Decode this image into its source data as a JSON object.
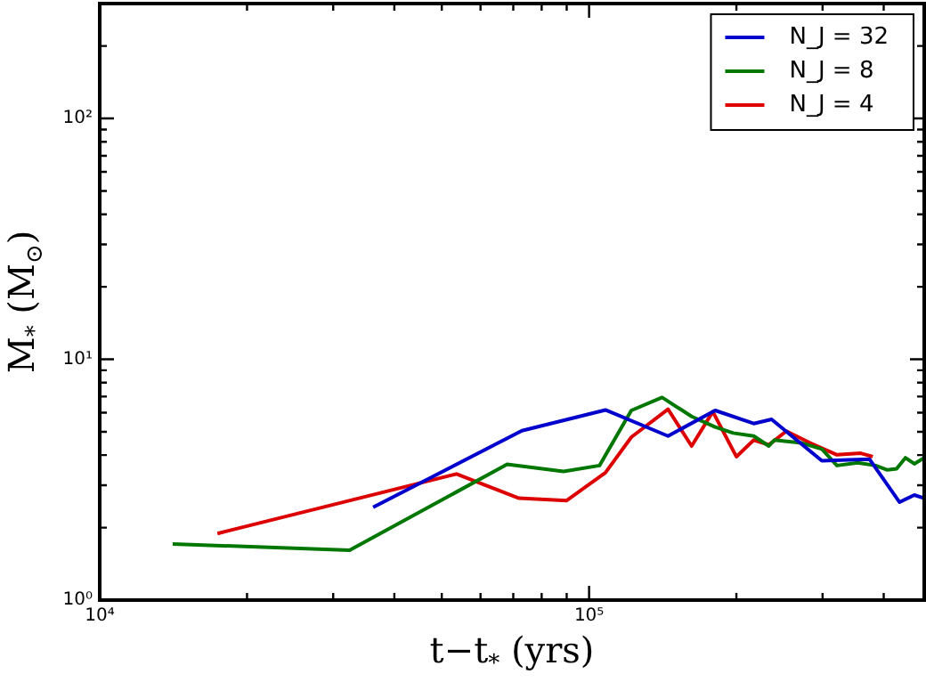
{
  "chart_data": {
    "type": "line",
    "xlabel": "t−t$_{*}$ (yrs)",
    "ylabel": "M$_{*}$ (M$_{⊙}$)",
    "log": "xy",
    "grid": false,
    "legend": "top right",
    "marker": "none",
    "line_style": "solid",
    "xlim": [
      10000,
      484000
    ],
    "ylim": [
      1,
      300
    ],
    "xticks": [
      {
        "value": 10000,
        "label": "10⁴"
      },
      {
        "value": 20000,
        "label": null
      },
      {
        "value": 30000,
        "label": null
      },
      {
        "value": 40000,
        "label": null
      },
      {
        "value": 50000,
        "label": null
      },
      {
        "value": 60000,
        "label": null
      },
      {
        "value": 70000,
        "label": null
      },
      {
        "value": 80000,
        "label": null
      },
      {
        "value": 90000,
        "label": null
      },
      {
        "value": 100000,
        "label": "10⁵"
      },
      {
        "value": 200000,
        "label": null
      },
      {
        "value": 300000,
        "label": null
      },
      {
        "value": 400000,
        "label": null
      }
    ],
    "yticks": [
      {
        "value": 1,
        "label": "10⁰"
      },
      {
        "value": 2,
        "label": null
      },
      {
        "value": 3,
        "label": null
      },
      {
        "value": 4,
        "label": null
      },
      {
        "value": 5,
        "label": null
      },
      {
        "value": 6,
        "label": null
      },
      {
        "value": 7,
        "label": null
      },
      {
        "value": 8,
        "label": null
      },
      {
        "value": 9,
        "label": null
      },
      {
        "value": 10,
        "label": "10¹"
      },
      {
        "value": 20,
        "label": null
      },
      {
        "value": 30,
        "label": null
      },
      {
        "value": 40,
        "label": null
      },
      {
        "value": 50,
        "label": null
      },
      {
        "value": 60,
        "label": null
      },
      {
        "value": 70,
        "label": null
      },
      {
        "value": 80,
        "label": null
      },
      {
        "value": 90,
        "label": null
      },
      {
        "value": 100,
        "label": "10²"
      },
      {
        "value": 200,
        "label": null
      },
      {
        "value": 300,
        "label": null
      }
    ],
    "series": [
      {
        "name": "N_J = 32",
        "color": "#0000cc",
        "x": [
          36200,
          72900,
          108000,
          145000,
          181000,
          217000,
          236000,
          299000,
          374000,
          431000,
          462000,
          484000
        ],
        "values": [
          2.43,
          5.05,
          6.16,
          4.8,
          6.13,
          5.41,
          5.63,
          3.79,
          3.85,
          2.55,
          2.73,
          2.65
        ]
      },
      {
        "name": "N_J = 8",
        "color": "#007700",
        "x": [
          14100,
          32400,
          68000,
          88700,
          105000,
          122000,
          141000,
          162000,
          181000,
          197000,
          217000,
          233000,
          239000,
          272000,
          299000,
          321000,
          354000,
          385000,
          407000,
          425000,
          443000,
          462000,
          484000
        ],
        "values": [
          1.71,
          1.61,
          3.66,
          3.42,
          3.62,
          6.13,
          6.94,
          5.79,
          5.23,
          4.94,
          4.8,
          4.36,
          4.62,
          4.49,
          4.24,
          3.62,
          3.72,
          3.62,
          3.47,
          3.51,
          3.9,
          3.68,
          3.9
        ]
      },
      {
        "name": "N_J = 4",
        "color": "#dd0000",
        "x": [
          17400,
          53600,
          71900,
          90000,
          108000,
          122000,
          145000,
          162000,
          179000,
          200000,
          217000,
          233000,
          253000,
          283000,
          321000,
          359000,
          380000
        ],
        "values": [
          1.89,
          3.34,
          2.65,
          2.59,
          3.38,
          4.75,
          6.2,
          4.36,
          6.06,
          3.94,
          4.62,
          4.41,
          5.03,
          4.49,
          4.01,
          4.07,
          3.94
        ]
      }
    ]
  }
}
